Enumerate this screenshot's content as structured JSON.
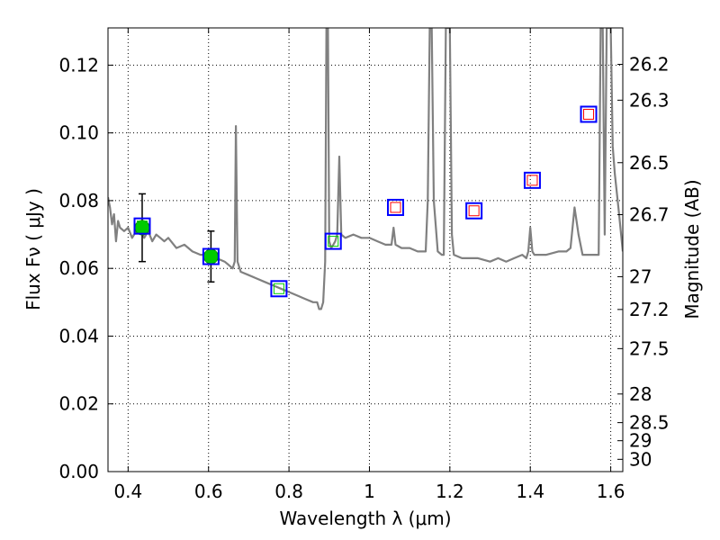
{
  "chart_data": {
    "type": "scatter",
    "xlabel": "Wavelength  λ (μm)",
    "ylabel": "Flux  Fν  ( μJy )",
    "y2label": "Magnitude (AB)",
    "xlim": [
      0.35,
      1.63
    ],
    "ylim": [
      0.0,
      0.131
    ],
    "grid": true,
    "x_ticks": [
      {
        "value": 0.4,
        "label": "0.4"
      },
      {
        "value": 0.6,
        "label": "0.6"
      },
      {
        "value": 0.8,
        "label": "0.8"
      },
      {
        "value": 1.0,
        "label": "1"
      },
      {
        "value": 1.2,
        "label": "1.2"
      },
      {
        "value": 1.4,
        "label": "1.4"
      },
      {
        "value": 1.6,
        "label": "1.6"
      }
    ],
    "y_ticks": [
      {
        "value": 0.0,
        "label": "0.00"
      },
      {
        "value": 0.02,
        "label": "0.02"
      },
      {
        "value": 0.04,
        "label": "0.04"
      },
      {
        "value": 0.06,
        "label": "0.06"
      },
      {
        "value": 0.08,
        "label": "0.08"
      },
      {
        "value": 0.1,
        "label": "0.10"
      },
      {
        "value": 0.12,
        "label": "0.12"
      }
    ],
    "y2_ticks": [
      {
        "mag": 26.2,
        "label": "26.2"
      },
      {
        "mag": 26.3,
        "label": "26.3"
      },
      {
        "mag": 26.5,
        "label": "26.5"
      },
      {
        "mag": 26.7,
        "label": "26.7"
      },
      {
        "mag": 27.0,
        "label": "27"
      },
      {
        "mag": 27.2,
        "label": "27.2"
      },
      {
        "mag": 27.5,
        "label": "27.5"
      },
      {
        "mag": 28.0,
        "label": "28"
      },
      {
        "mag": 28.5,
        "label": "28.5"
      },
      {
        "mag": 29.0,
        "label": "29"
      },
      {
        "mag": 30.0,
        "label": "30"
      }
    ],
    "colors": {
      "spectrum": "#808080",
      "observed": "#00cc00",
      "errorbar": "#000000",
      "model_box": "#0000ff",
      "model_inner_optical": "#00cc00",
      "model_inner_nir": "#ff0000"
    },
    "spectrum": [
      [
        0.35,
        0.081
      ],
      [
        0.355,
        0.078
      ],
      [
        0.36,
        0.073
      ],
      [
        0.365,
        0.076
      ],
      [
        0.37,
        0.068
      ],
      [
        0.375,
        0.074
      ],
      [
        0.38,
        0.072
      ],
      [
        0.39,
        0.071
      ],
      [
        0.4,
        0.072
      ],
      [
        0.41,
        0.069
      ],
      [
        0.42,
        0.071
      ],
      [
        0.43,
        0.072
      ],
      [
        0.44,
        0.069
      ],
      [
        0.45,
        0.071
      ],
      [
        0.46,
        0.068
      ],
      [
        0.47,
        0.07
      ],
      [
        0.48,
        0.069
      ],
      [
        0.49,
        0.068
      ],
      [
        0.5,
        0.069
      ],
      [
        0.52,
        0.066
      ],
      [
        0.54,
        0.067
      ],
      [
        0.56,
        0.065
      ],
      [
        0.58,
        0.064
      ],
      [
        0.6,
        0.064
      ],
      [
        0.62,
        0.063
      ],
      [
        0.64,
        0.062
      ],
      [
        0.65,
        0.061
      ],
      [
        0.66,
        0.06
      ],
      [
        0.665,
        0.062
      ],
      [
        0.668,
        0.102
      ],
      [
        0.672,
        0.062
      ],
      [
        0.68,
        0.059
      ],
      [
        0.7,
        0.058
      ],
      [
        0.72,
        0.057
      ],
      [
        0.74,
        0.056
      ],
      [
        0.76,
        0.055
      ],
      [
        0.78,
        0.054
      ],
      [
        0.8,
        0.053
      ],
      [
        0.82,
        0.052
      ],
      [
        0.84,
        0.051
      ],
      [
        0.86,
        0.05
      ],
      [
        0.87,
        0.05
      ],
      [
        0.875,
        0.048
      ],
      [
        0.88,
        0.048
      ],
      [
        0.885,
        0.05
      ],
      [
        0.89,
        0.062
      ],
      [
        0.893,
        0.131
      ],
      [
        0.897,
        0.131
      ],
      [
        0.9,
        0.068
      ],
      [
        0.905,
        0.066
      ],
      [
        0.91,
        0.067
      ],
      [
        0.915,
        0.068
      ],
      [
        0.92,
        0.07
      ],
      [
        0.925,
        0.093
      ],
      [
        0.93,
        0.07
      ],
      [
        0.94,
        0.069
      ],
      [
        0.96,
        0.07
      ],
      [
        0.98,
        0.069
      ],
      [
        1.0,
        0.069
      ],
      [
        1.02,
        0.068
      ],
      [
        1.04,
        0.067
      ],
      [
        1.055,
        0.067
      ],
      [
        1.06,
        0.072
      ],
      [
        1.065,
        0.067
      ],
      [
        1.08,
        0.066
      ],
      [
        1.1,
        0.066
      ],
      [
        1.12,
        0.065
      ],
      [
        1.14,
        0.065
      ],
      [
        1.145,
        0.08
      ],
      [
        1.15,
        0.131
      ],
      [
        1.155,
        0.131
      ],
      [
        1.16,
        0.08
      ],
      [
        1.17,
        0.065
      ],
      [
        1.18,
        0.064
      ],
      [
        1.185,
        0.064
      ],
      [
        1.19,
        0.131
      ],
      [
        1.2,
        0.131
      ],
      [
        1.205,
        0.07
      ],
      [
        1.21,
        0.064
      ],
      [
        1.23,
        0.063
      ],
      [
        1.25,
        0.063
      ],
      [
        1.27,
        0.063
      ],
      [
        1.3,
        0.062
      ],
      [
        1.32,
        0.063
      ],
      [
        1.34,
        0.062
      ],
      [
        1.36,
        0.063
      ],
      [
        1.38,
        0.064
      ],
      [
        1.39,
        0.063
      ],
      [
        1.395,
        0.065
      ],
      [
        1.4,
        0.072
      ],
      [
        1.405,
        0.065
      ],
      [
        1.41,
        0.064
      ],
      [
        1.44,
        0.064
      ],
      [
        1.47,
        0.065
      ],
      [
        1.49,
        0.065
      ],
      [
        1.5,
        0.066
      ],
      [
        1.51,
        0.078
      ],
      [
        1.52,
        0.07
      ],
      [
        1.53,
        0.064
      ],
      [
        1.55,
        0.064
      ],
      [
        1.57,
        0.064
      ],
      [
        1.575,
        0.131
      ],
      [
        1.58,
        0.131
      ],
      [
        1.585,
        0.07
      ],
      [
        1.59,
        0.131
      ],
      [
        1.6,
        0.131
      ],
      [
        1.605,
        0.096
      ],
      [
        1.61,
        0.088
      ],
      [
        1.62,
        0.077
      ],
      [
        1.63,
        0.065
      ]
    ],
    "observed_points": [
      {
        "x": 0.435,
        "y": 0.072,
        "yerr": 0.01
      },
      {
        "x": 0.606,
        "y": 0.0635,
        "yerr": 0.0075
      }
    ],
    "model_points": [
      {
        "x": 0.435,
        "y": 0.0725,
        "band": "optical"
      },
      {
        "x": 0.606,
        "y": 0.0635,
        "band": "optical"
      },
      {
        "x": 0.775,
        "y": 0.054,
        "band": "optical"
      },
      {
        "x": 0.91,
        "y": 0.068,
        "band": "optical"
      },
      {
        "x": 1.065,
        "y": 0.078,
        "band": "nir"
      },
      {
        "x": 1.26,
        "y": 0.077,
        "band": "nir"
      },
      {
        "x": 1.405,
        "y": 0.086,
        "band": "nir"
      },
      {
        "x": 1.545,
        "y": 0.1055,
        "band": "nir"
      }
    ]
  }
}
